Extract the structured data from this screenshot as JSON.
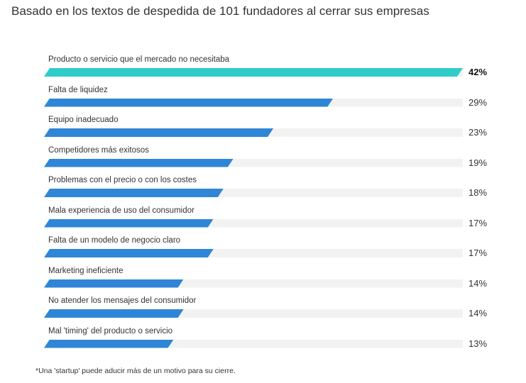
{
  "subtitle": "Basado en los textos de despedida de 101 fundadores al cerrar sus empresas",
  "footnote": "*Una 'startup' puede aducir más de un motivo para su cierre.",
  "colors": {
    "highlight": "#2ecdc8",
    "bar": "#2f86d6",
    "track": "#f2f2f2"
  },
  "chart_data": {
    "type": "bar",
    "orientation": "horizontal",
    "title": "Basado en los textos de despedida de 101 fundadores al cerrar sus empresas",
    "xlim": [
      0,
      42
    ],
    "grid": false,
    "categories": [
      "Producto o servicio que el mercado no necesitaba",
      "Falta de liquidez",
      "Equipo inadecuado",
      "Competidores más exitosos",
      "Problemas con el precio o con los costes",
      "Mala experiencia de uso del consumidor",
      "Falta de un modelo de negocio claro",
      "Marketing ineficiente",
      "No atender los mensajes del consumidor",
      "Mal 'timing' del producto o servicio"
    ],
    "values": [
      42,
      29,
      23,
      19,
      18,
      17,
      17,
      14,
      14,
      13
    ],
    "labels": [
      "42%",
      "29%",
      "23%",
      "19%",
      "18%",
      "17%",
      "17%",
      "14%",
      "14%",
      "13%"
    ]
  }
}
